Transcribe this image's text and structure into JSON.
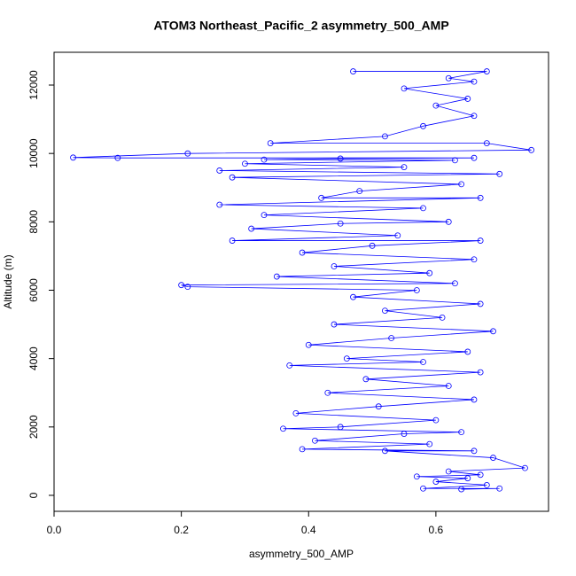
{
  "chart_data": {
    "type": "scatter",
    "title": "ATOM3 Northeast_Pacific_2 asymmetry_500_AMP",
    "x_label": "asymmetry_500_AMP",
    "y_label": "Altitude (m)",
    "color": "#0000ff",
    "connect": true,
    "xlim": [
      0,
      0.777
    ],
    "ylim": [
      -467,
      12959
    ],
    "xticks": [
      {
        "value": 0,
        "label": "0.0"
      },
      {
        "value": 0.2,
        "label": "0.2"
      },
      {
        "value": 0.4,
        "label": "0.4"
      },
      {
        "value": 0.6,
        "label": "0.6"
      }
    ],
    "yticks": [
      0,
      2000,
      4000,
      6000,
      8000,
      10000,
      12000
    ],
    "x": [
      0.47,
      0.68,
      0.62,
      0.66,
      0.55,
      0.65,
      0.6,
      0.66,
      0.58,
      0.52,
      0.34,
      0.68,
      0.75,
      0.21,
      0.03,
      0.1,
      0.66,
      0.45,
      0.33,
      0.63,
      0.3,
      0.55,
      0.26,
      0.7,
      0.28,
      0.64,
      0.48,
      0.42,
      0.67,
      0.26,
      0.58,
      0.33,
      0.62,
      0.45,
      0.31,
      0.54,
      0.28,
      0.67,
      0.5,
      0.39,
      0.66,
      0.44,
      0.59,
      0.35,
      0.63,
      0.2,
      0.21,
      0.57,
      0.47,
      0.67,
      0.52,
      0.61,
      0.44,
      0.69,
      0.53,
      0.4,
      0.65,
      0.46,
      0.58,
      0.37,
      0.67,
      0.49,
      0.62,
      0.43,
      0.66,
      0.51,
      0.38,
      0.6,
      0.45,
      0.36,
      0.64,
      0.55,
      0.41,
      0.59,
      0.39,
      0.66,
      0.52,
      0.69,
      0.74,
      0.62,
      0.67,
      0.57,
      0.65,
      0.6,
      0.68,
      0.58,
      0.7,
      0.64
    ],
    "values": [
      12400,
      12400,
      12200,
      12100,
      11900,
      11600,
      11400,
      11100,
      10800,
      10500,
      10300,
      10300,
      10100,
      10000,
      9880,
      9870,
      9870,
      9850,
      9820,
      9800,
      9700,
      9600,
      9500,
      9400,
      9300,
      9100,
      8900,
      8700,
      8700,
      8500,
      8400,
      8200,
      8000,
      7950,
      7800,
      7600,
      7450,
      7450,
      7300,
      7100,
      6900,
      6700,
      6500,
      6400,
      6200,
      6150,
      6100,
      6000,
      5800,
      5600,
      5400,
      5200,
      5000,
      4800,
      4600,
      4400,
      4200,
      4000,
      3900,
      3800,
      3600,
      3400,
      3200,
      3000,
      2800,
      2600,
      2400,
      2200,
      2000,
      1950,
      1850,
      1800,
      1600,
      1500,
      1350,
      1300,
      1300,
      1100,
      800,
      700,
      600,
      550,
      500,
      400,
      300,
      200,
      200,
      180
    ]
  }
}
